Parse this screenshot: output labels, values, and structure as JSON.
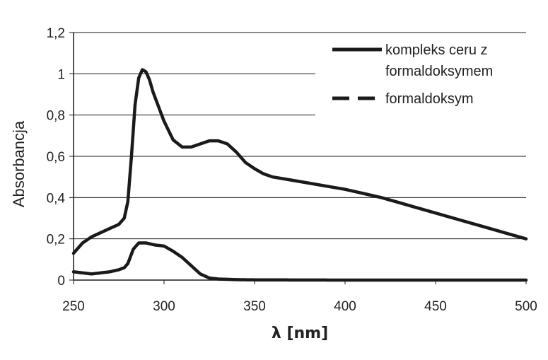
{
  "chart_data": {
    "type": "line",
    "xlabel": "λ [nm]",
    "ylabel": "Absorbancja",
    "xlim": [
      250,
      500
    ],
    "ylim": [
      0,
      1.2
    ],
    "xticks": [
      "250",
      "300",
      "350",
      "400",
      "450",
      "500"
    ],
    "yticks": [
      "0",
      "0,2",
      "0,4",
      "0,6",
      "0,8",
      "1",
      "1,2"
    ],
    "grid": "horizontal",
    "legend": "top-right",
    "legend_entries": [
      {
        "label_lines": [
          "kompleks ceru z",
          "formaldoksymem"
        ],
        "style": "solid"
      },
      {
        "label_lines": [
          "formaldoksym"
        ],
        "style": "dashed"
      }
    ],
    "series": [
      {
        "name": "kompleks ceru z formaldoksymem",
        "style": "solid",
        "x": [
          250,
          255,
          260,
          265,
          270,
          275,
          278,
          280,
          282,
          284,
          286,
          288,
          290,
          292,
          294,
          297,
          300,
          305,
          310,
          315,
          320,
          325,
          330,
          335,
          340,
          345,
          350,
          355,
          360,
          370,
          380,
          390,
          400,
          410,
          420,
          430,
          440,
          450,
          460,
          470,
          480,
          490,
          500
        ],
        "y": [
          0.13,
          0.18,
          0.21,
          0.23,
          0.25,
          0.27,
          0.3,
          0.38,
          0.6,
          0.85,
          0.98,
          1.02,
          1.01,
          0.97,
          0.91,
          0.84,
          0.77,
          0.68,
          0.645,
          0.645,
          0.66,
          0.675,
          0.675,
          0.66,
          0.62,
          0.57,
          0.54,
          0.515,
          0.5,
          0.485,
          0.47,
          0.455,
          0.44,
          0.42,
          0.4,
          0.375,
          0.35,
          0.325,
          0.3,
          0.275,
          0.25,
          0.225,
          0.2
        ]
      },
      {
        "name": "formaldoksym",
        "style": "dashed",
        "x": [
          250,
          255,
          260,
          265,
          270,
          275,
          278,
          280,
          283,
          286,
          290,
          295,
          300,
          305,
          310,
          315,
          320,
          325,
          330,
          340,
          350,
          400,
          450,
          500
        ],
        "y": [
          0.04,
          0.035,
          0.03,
          0.035,
          0.04,
          0.05,
          0.06,
          0.08,
          0.15,
          0.18,
          0.18,
          0.17,
          0.165,
          0.14,
          0.11,
          0.07,
          0.03,
          0.01,
          0.005,
          0.002,
          0.001,
          0.0,
          0.0,
          0.0
        ]
      }
    ]
  }
}
